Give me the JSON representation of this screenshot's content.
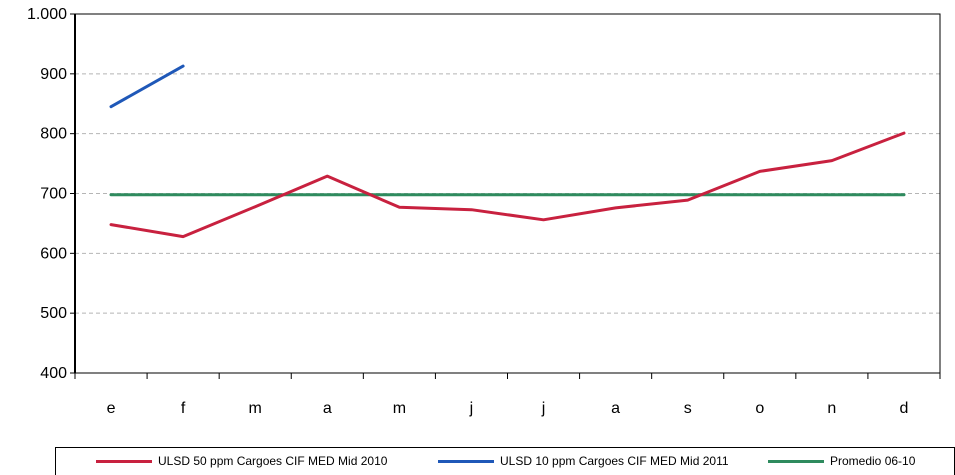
{
  "chart_data": {
    "type": "line",
    "categories": [
      "e",
      "f",
      "m",
      "a",
      "m",
      "j",
      "j",
      "a",
      "s",
      "o",
      "n",
      "d"
    ],
    "ylim": [
      400,
      1000
    ],
    "yticks": [
      400,
      500,
      600,
      700,
      800,
      900,
      1000
    ],
    "ytick_labels": [
      "400",
      "500",
      "600",
      "700",
      "800",
      "900",
      "1.000"
    ],
    "grid": true,
    "legend_position": "bottom",
    "series": [
      {
        "name": "ULSD 50 ppm Cargoes CIF MED Mid 2010",
        "color": "#c8213f",
        "values": [
          648,
          628,
          678,
          729,
          677,
          673,
          656,
          676,
          689,
          737,
          755,
          801
        ]
      },
      {
        "name": "ULSD 10 ppm Cargoes CIF MED Mid 2011",
        "color": "#1f58b8",
        "values": [
          845,
          913,
          null,
          null,
          null,
          null,
          null,
          null,
          null,
          null,
          null,
          null
        ]
      },
      {
        "name": "Promedio 06-10",
        "color": "#2e8b5e",
        "values": [
          698,
          698,
          698,
          698,
          698,
          698,
          698,
          698,
          698,
          698,
          698,
          698
        ]
      }
    ]
  }
}
